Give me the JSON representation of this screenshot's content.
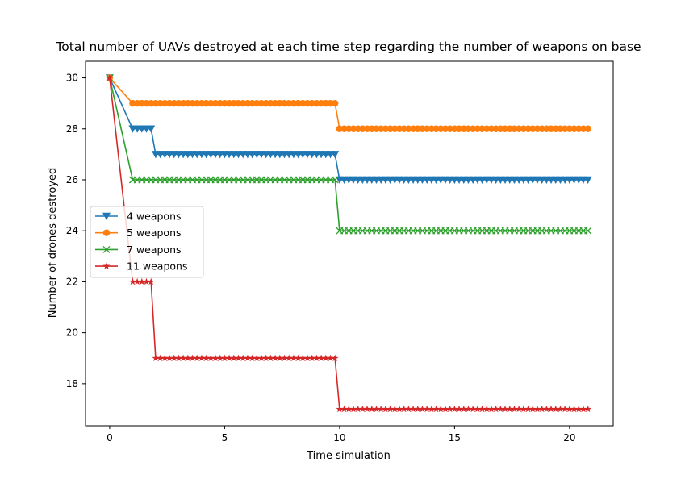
{
  "chart_data": {
    "type": "line",
    "title": "Total number of UAVs destroyed at each time step regarding the number of weapons on base",
    "xlabel": "Time simulation",
    "ylabel": "Number of drones destroyed",
    "xlim": [
      -1.05,
      21.9
    ],
    "ylim": [
      16.35,
      30.65
    ],
    "xticks": [
      0,
      5,
      10,
      15,
      20
    ],
    "yticks": [
      18,
      20,
      22,
      24,
      26,
      28,
      30
    ],
    "x_step": 0.2,
    "grid": false,
    "legend_position": "center-left",
    "series": [
      {
        "name": "4 weapons",
        "color": "#1f77b4",
        "marker": "triangle-down",
        "segments": [
          {
            "from": 0.0,
            "to": 0.0,
            "value": 30
          },
          {
            "from": 1.0,
            "to": 1.8,
            "value": 28
          },
          {
            "from": 2.0,
            "to": 9.8,
            "value": 27
          },
          {
            "from": 10.0,
            "to": 20.8,
            "value": 26
          }
        ]
      },
      {
        "name": "5 weapons",
        "color": "#ff7f0e",
        "marker": "circle",
        "segments": [
          {
            "from": 0.0,
            "to": 0.0,
            "value": 30
          },
          {
            "from": 1.0,
            "to": 9.8,
            "value": 29
          },
          {
            "from": 10.0,
            "to": 20.8,
            "value": 28
          }
        ]
      },
      {
        "name": "7 weapons",
        "color": "#2ca02c",
        "marker": "x",
        "segments": [
          {
            "from": 0.0,
            "to": 0.0,
            "value": 30
          },
          {
            "from": 1.0,
            "to": 9.8,
            "value": 26
          },
          {
            "from": 10.0,
            "to": 20.8,
            "value": 24
          }
        ]
      },
      {
        "name": "11 weapons",
        "color": "#d62728",
        "marker": "star",
        "segments": [
          {
            "from": 0.0,
            "to": 0.0,
            "value": 30
          },
          {
            "from": 1.0,
            "to": 1.8,
            "value": 22
          },
          {
            "from": 2.0,
            "to": 9.8,
            "value": 19
          },
          {
            "from": 10.0,
            "to": 20.8,
            "value": 17
          }
        ]
      }
    ]
  }
}
